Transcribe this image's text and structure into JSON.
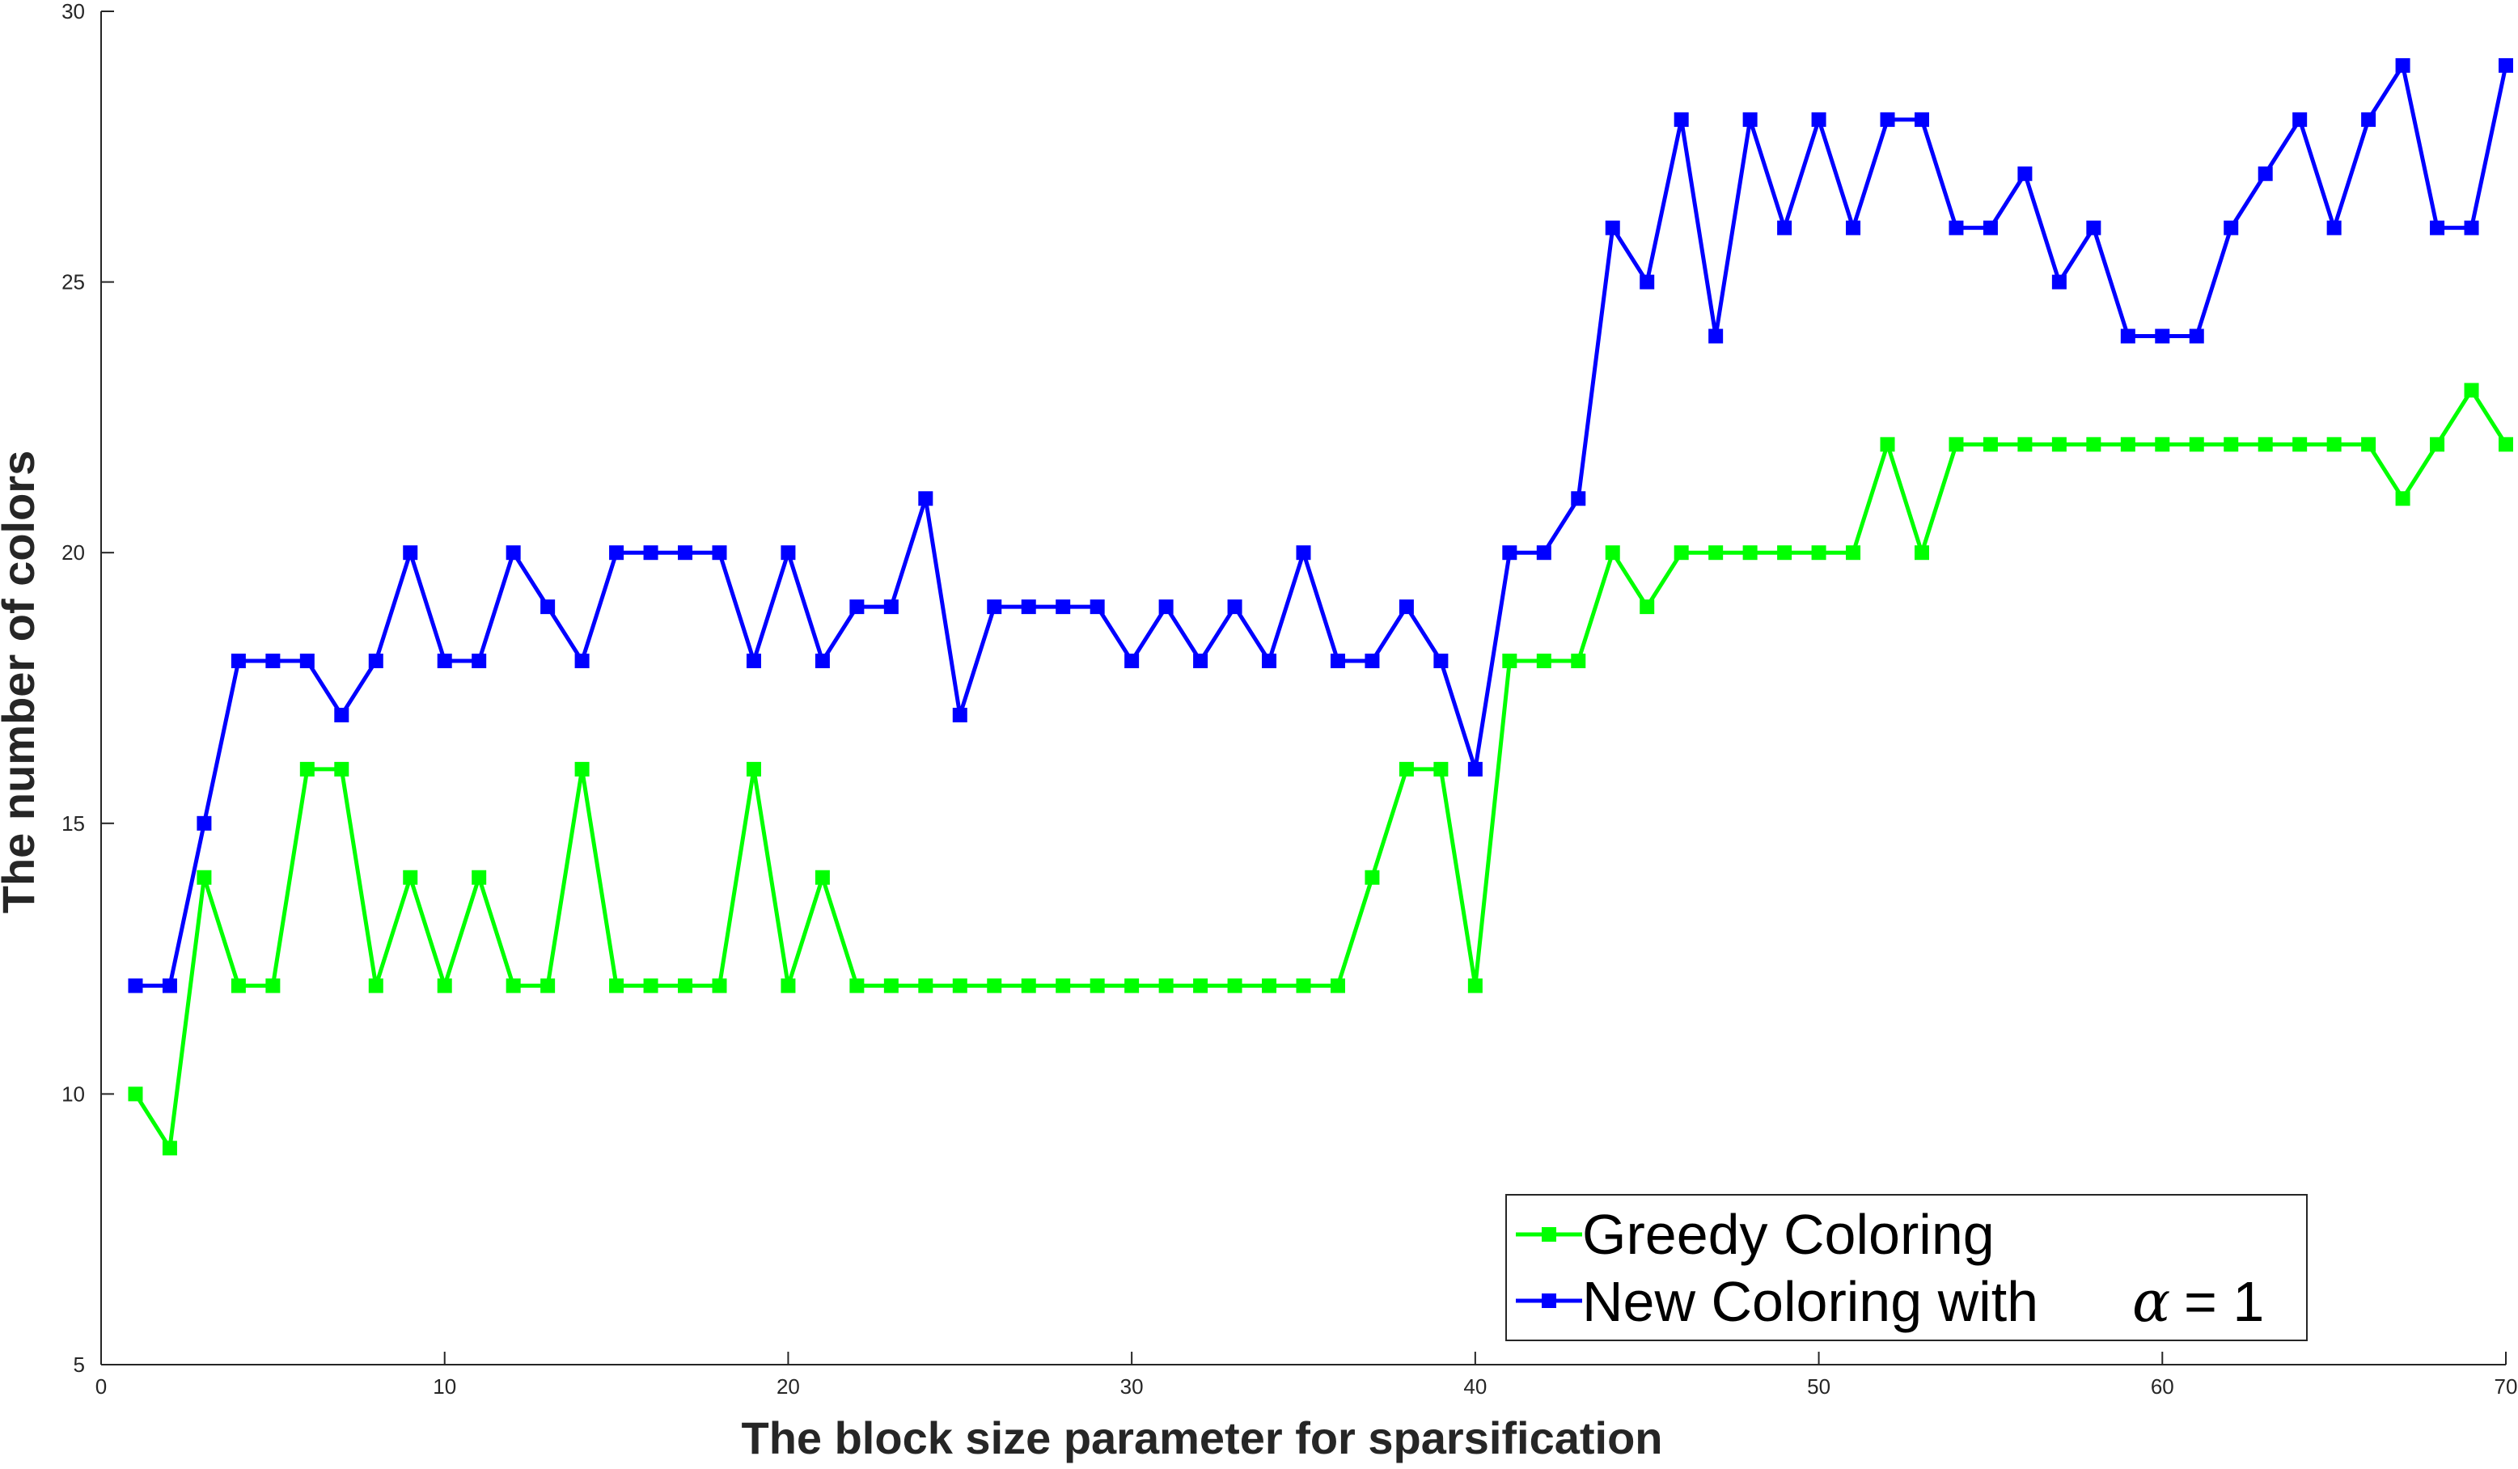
{
  "chart_data": {
    "type": "line",
    "title": "",
    "xlabel": "The block size parameter for sparsification",
    "ylabel": "The number of colors",
    "xlim": [
      0,
      70
    ],
    "ylim": [
      5,
      30
    ],
    "xticks": [
      0,
      10,
      20,
      30,
      40,
      50,
      60,
      70
    ],
    "yticks": [
      5,
      10,
      15,
      20,
      25,
      30
    ],
    "xtick_labels": [
      "0",
      "10",
      "20",
      "30",
      "40",
      "50",
      "60",
      "70"
    ],
    "ytick_labels": [
      "5",
      "10",
      "15",
      "20",
      "25",
      "30"
    ],
    "grid": false,
    "legend_position": "bottom-right",
    "x": [
      1,
      2,
      3,
      4,
      5,
      6,
      7,
      8,
      9,
      10,
      11,
      12,
      13,
      14,
      15,
      16,
      17,
      18,
      19,
      20,
      21,
      22,
      23,
      24,
      25,
      26,
      27,
      28,
      29,
      30,
      31,
      32,
      33,
      34,
      35,
      36,
      37,
      38,
      39,
      40,
      41,
      42,
      43,
      44,
      45,
      46,
      47,
      48,
      49,
      50,
      51,
      52,
      53,
      54,
      55,
      56,
      57,
      58,
      59,
      60,
      61,
      62,
      63,
      64,
      65,
      66,
      67,
      68,
      69,
      70
    ],
    "series": [
      {
        "name": "Greedy Coloring",
        "color": "#00ff00",
        "values": [
          10,
          9,
          14,
          12,
          12,
          16,
          16,
          12,
          14,
          12,
          14,
          12,
          12,
          16,
          12,
          12,
          12,
          12,
          16,
          12,
          14,
          12,
          12,
          12,
          12,
          12,
          12,
          12,
          12,
          12,
          12,
          12,
          12,
          12,
          12,
          12,
          14,
          16,
          16,
          12,
          18,
          18,
          18,
          20,
          19,
          20,
          20,
          20,
          20,
          20,
          20,
          22,
          20,
          22,
          22,
          22,
          22,
          22,
          22,
          22,
          22,
          22,
          22,
          22,
          22,
          22,
          21,
          22,
          23,
          22
        ]
      },
      {
        "name": "New Coloring with α = 1",
        "legend_text": "New Coloring with",
        "legend_symbol": "α",
        "legend_suffix": "= 1",
        "color": "#0000ff",
        "values": [
          12,
          12,
          15,
          18,
          18,
          18,
          17,
          18,
          20,
          18,
          18,
          20,
          19,
          18,
          20,
          20,
          20,
          20,
          18,
          20,
          18,
          19,
          19,
          21,
          17,
          19,
          19,
          19,
          19,
          18,
          19,
          18,
          19,
          18,
          20,
          18,
          18,
          19,
          18,
          16,
          20,
          20,
          21,
          26,
          25,
          28,
          24,
          28,
          26,
          28,
          26,
          28,
          28,
          26,
          26,
          27,
          25,
          26,
          24,
          24,
          24,
          26,
          27,
          28,
          26,
          28,
          29,
          26,
          26,
          29
        ]
      }
    ]
  }
}
